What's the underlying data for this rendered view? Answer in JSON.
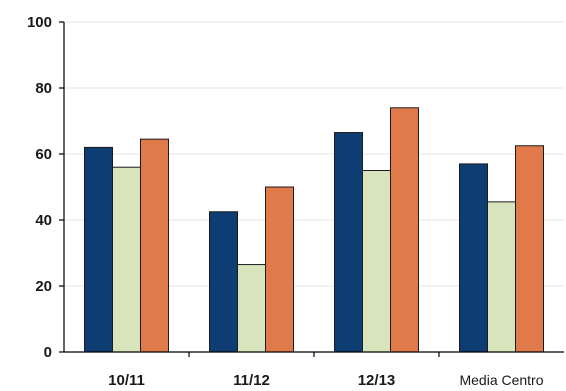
{
  "chart_data": {
    "type": "bar",
    "categories": [
      "10/11",
      "11/12",
      "12/13",
      "Media Centro"
    ],
    "series": [
      {
        "values": [
          62,
          42.5,
          66.5,
          57
        ],
        "color": "#0e3d73"
      },
      {
        "values": [
          56,
          26.5,
          55,
          45.5
        ],
        "color": "#d8e4bc"
      },
      {
        "values": [
          64.5,
          50,
          74,
          62.5
        ],
        "color": "#e17a4a"
      }
    ],
    "ylim": [
      0,
      100
    ],
    "yticks": [
      0,
      20,
      40,
      60,
      80,
      100
    ],
    "grid": true,
    "legend": "none"
  }
}
